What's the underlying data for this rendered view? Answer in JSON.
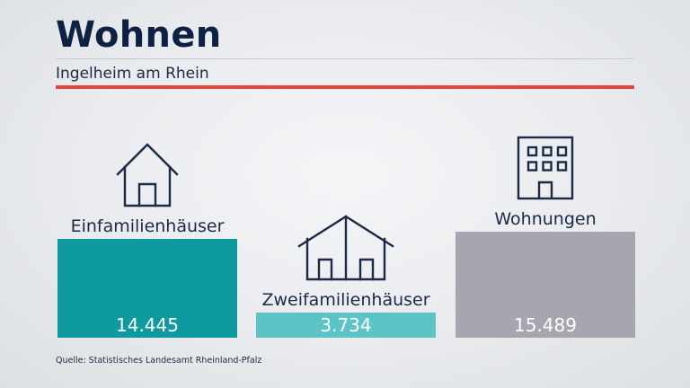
{
  "title": "Wohnen",
  "subtitle": "Ingelheim am Rhein",
  "source": "Quelle: Statistisches Landesamt Rheinland-Pfalz",
  "colors": {
    "title": "#0d2143",
    "accent_line": "#e3473a",
    "einfamilienhaeuser": "#0f9aa0",
    "zweifamilienhaeuser": "#5cc3c7",
    "wohnungen": "#a7a6b0"
  },
  "chart_data": {
    "type": "bar",
    "categories": [
      "Einfamilienhäuser",
      "Zweifamilienhäuser",
      "Wohnungen"
    ],
    "values": [
      14445,
      3734,
      15489
    ],
    "value_labels": [
      "14.445",
      "3.734",
      "15.489"
    ],
    "icons": [
      "house-icon",
      "two-family-house-icon",
      "apartment-building-icon"
    ],
    "colors": [
      "#0f9aa0",
      "#5cc3c7",
      "#a7a6b0"
    ]
  }
}
